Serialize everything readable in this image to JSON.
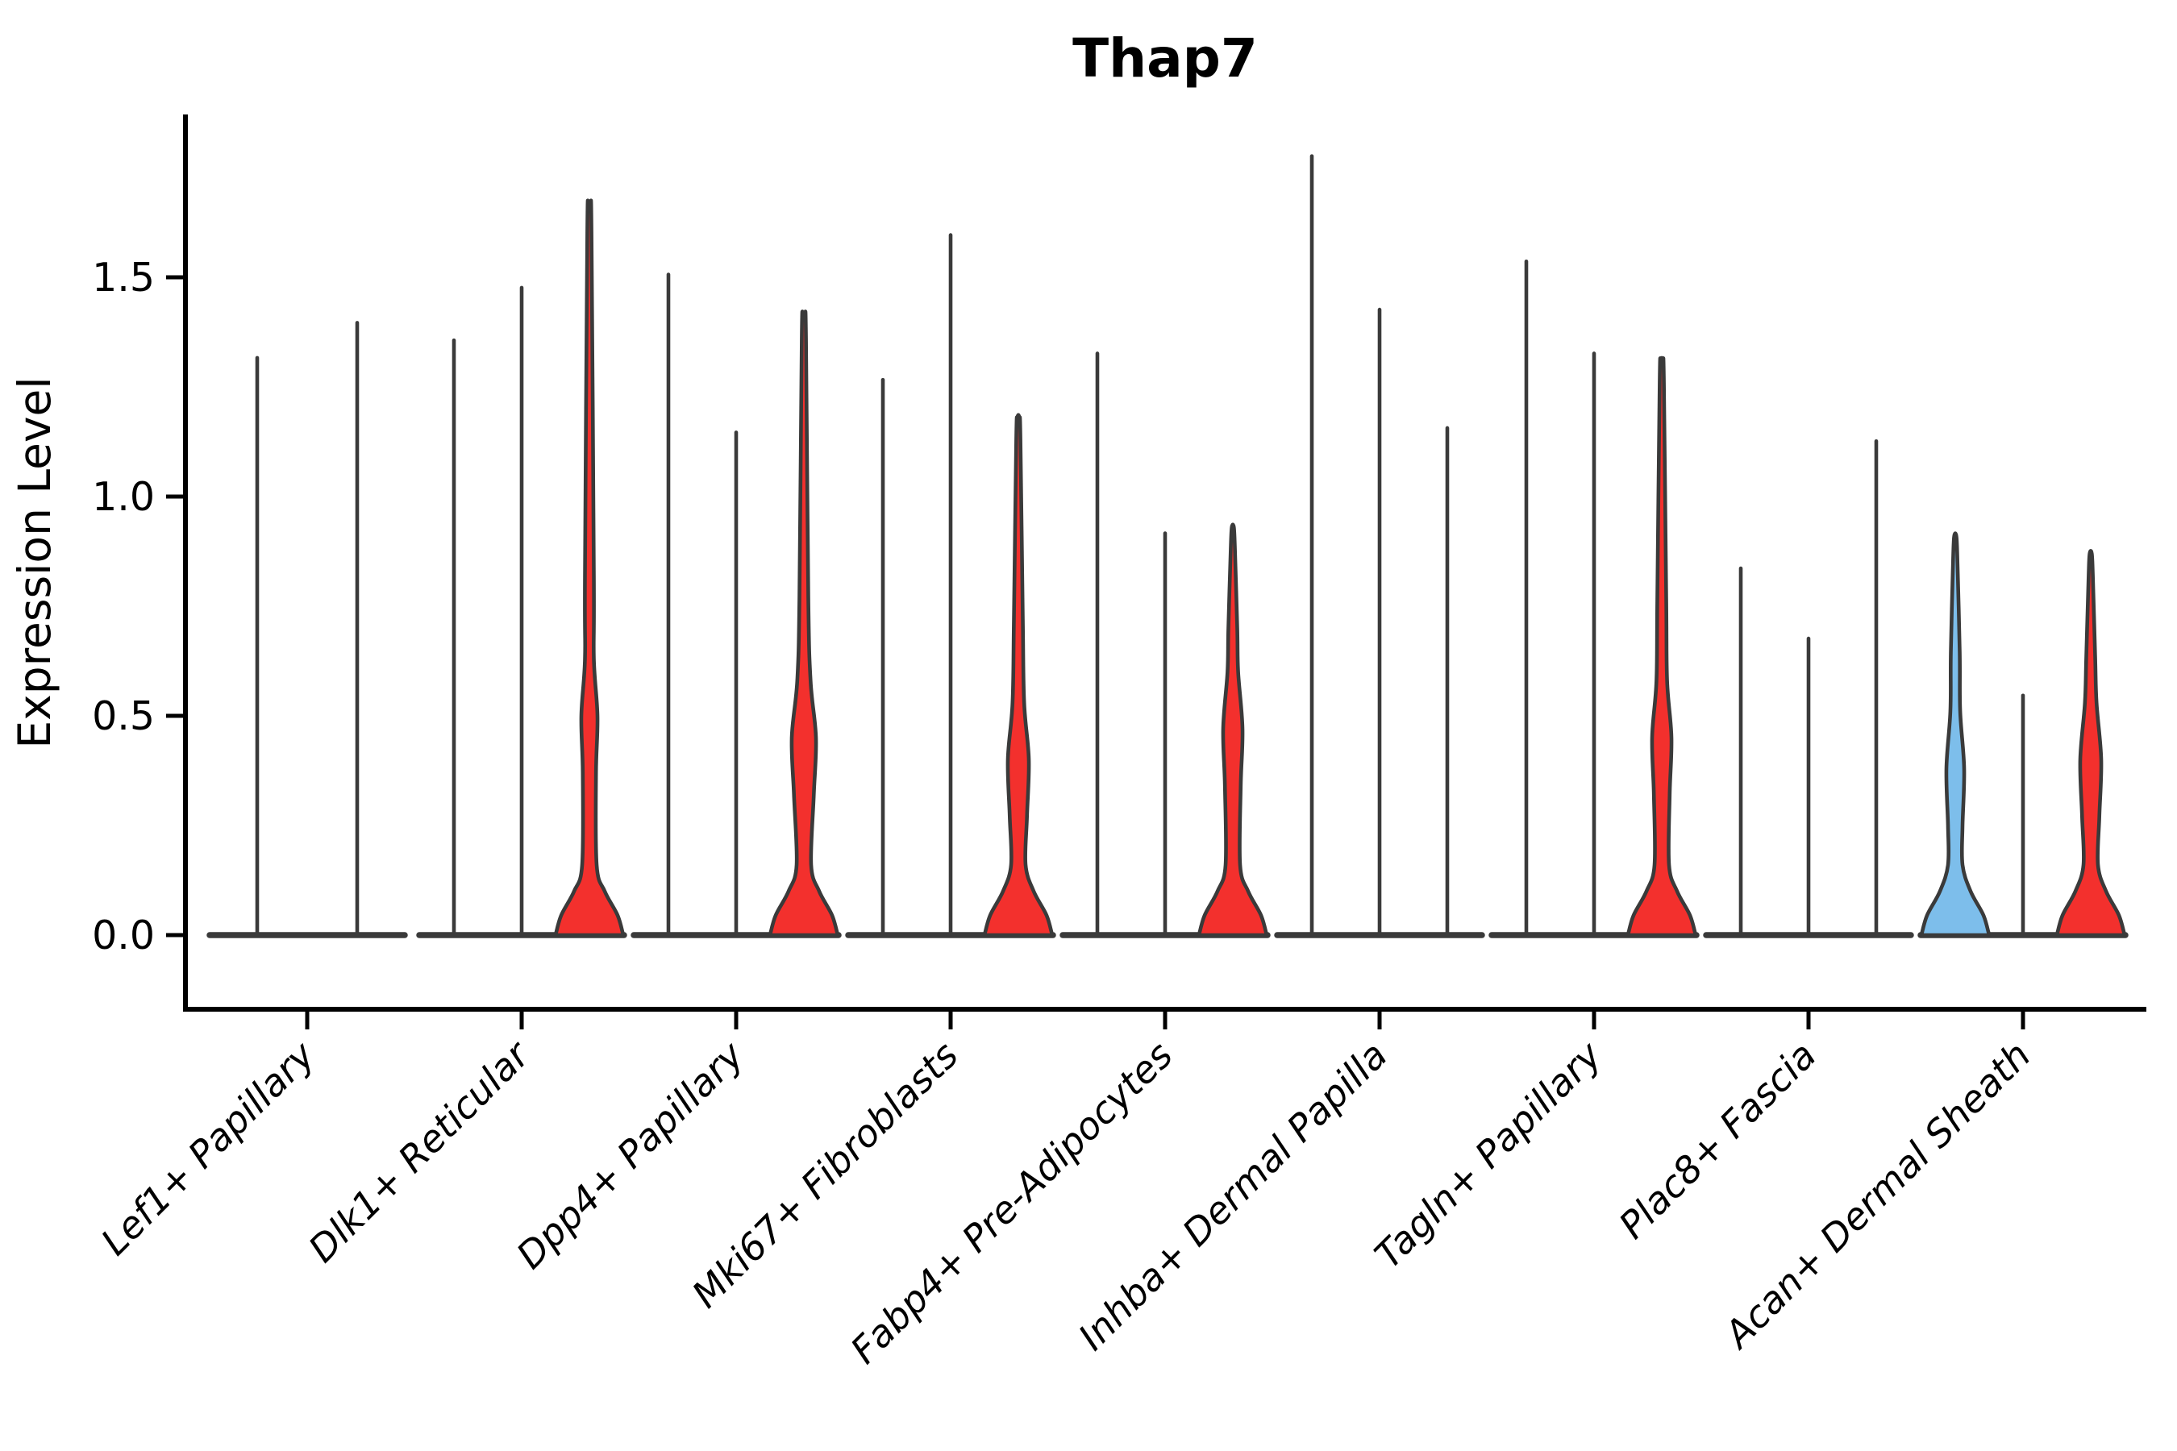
{
  "chart_data": {
    "type": "violin",
    "title": "Thap7",
    "ylabel": "Expression Level",
    "xlabel": "",
    "grid": false,
    "legend_position": "none",
    "ylim": [
      -0.17,
      1.87
    ],
    "ytick_values": [
      0.0,
      0.5,
      1.0,
      1.5
    ],
    "ytick_labels": [
      "0.0",
      "0.5",
      "1.0",
      "1.5"
    ],
    "categories": [
      "Lef1+ Papillary",
      "Dlk1+ Reticular",
      "Dpp4+ Papillary",
      "Mki67+ Fibroblasts",
      "Fabp4+ Pre-Adipocytes",
      "Inhba+ Dermal Papilla",
      "Tagln+ Papillary",
      "Plac8+ Fascia",
      "Acan+ Dermal Sheath"
    ],
    "colors": {
      "red_fill": "#f3302d",
      "blue_fill": "#7dbeeb",
      "violin_outline": "#3a3a3a",
      "axis": "#000000",
      "background": "#ffffff"
    },
    "groups": [
      {
        "category": "Lef1+ Papillary",
        "violins": [
          {
            "max": 1.32,
            "style": "line"
          },
          {
            "max": 1.4,
            "style": "line"
          }
        ]
      },
      {
        "category": "Dlk1+ Reticular",
        "violins": [
          {
            "max": 1.36,
            "style": "line"
          },
          {
            "max": 1.48,
            "style": "line"
          },
          {
            "max": 1.65,
            "style": "filled",
            "color": "red",
            "bulge_value": 0.5,
            "bulge_halfwidth": 10
          }
        ]
      },
      {
        "category": "Dpp4+ Papillary",
        "violins": [
          {
            "max": 1.51,
            "style": "line"
          },
          {
            "max": 1.15,
            "style": "line"
          },
          {
            "max": 1.41,
            "style": "filled",
            "color": "red",
            "bulge_value": 0.45,
            "bulge_halfwidth": 15
          }
        ]
      },
      {
        "category": "Mki67+ Fibroblasts",
        "violins": [
          {
            "max": 1.27,
            "style": "line"
          },
          {
            "max": 1.6,
            "style": "line"
          },
          {
            "max": 1.18,
            "style": "filled",
            "color": "red",
            "bulge_value": 0.4,
            "bulge_halfwidth": 13
          }
        ]
      },
      {
        "category": "Fabp4+ Pre-Adipocytes",
        "violins": [
          {
            "max": 1.33,
            "style": "line"
          },
          {
            "max": 0.92,
            "style": "line"
          },
          {
            "max": 0.93,
            "style": "filled",
            "color": "red",
            "bulge_value": 0.47,
            "bulge_halfwidth": 12
          }
        ]
      },
      {
        "category": "Inhba+ Dermal Papilla",
        "violins": [
          {
            "max": 1.78,
            "style": "line"
          },
          {
            "max": 1.43,
            "style": "line"
          },
          {
            "max": 1.16,
            "style": "line"
          }
        ]
      },
      {
        "category": "Tagln+ Papillary",
        "violins": [
          {
            "max": 1.54,
            "style": "line"
          },
          {
            "max": 1.33,
            "style": "line"
          },
          {
            "max": 1.31,
            "style": "filled",
            "color": "red",
            "bulge_value": 0.45,
            "bulge_halfwidth": 12
          }
        ]
      },
      {
        "category": "Plac8+ Fascia",
        "violins": [
          {
            "max": 0.84,
            "style": "line"
          },
          {
            "max": 0.68,
            "style": "line"
          },
          {
            "max": 1.13,
            "style": "line"
          }
        ]
      },
      {
        "category": "Acan+ Dermal Sheath",
        "violins": [
          {
            "max": 0.91,
            "style": "filled",
            "color": "blue",
            "bulge_value": 0.38,
            "bulge_halfwidth": 11
          },
          {
            "max": 0.55,
            "style": "line"
          },
          {
            "max": 0.87,
            "style": "filled",
            "color": "red",
            "bulge_value": 0.4,
            "bulge_halfwidth": 13
          }
        ]
      }
    ]
  }
}
